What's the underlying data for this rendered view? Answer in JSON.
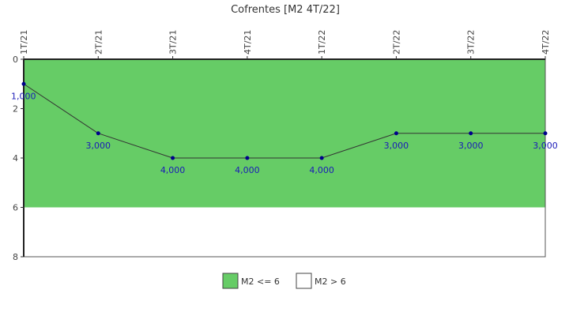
{
  "chart_data": {
    "type": "line",
    "title": "Cofrentes [M2 4T/22]",
    "categories": [
      "1T/21",
      "2T/21",
      "3T/21",
      "4T/21",
      "1T/22",
      "2T/22",
      "3T/22",
      "4T/22"
    ],
    "series": [
      {
        "values": [
          1,
          3,
          4,
          4,
          4,
          3,
          3,
          3
        ],
        "labels": [
          "1,000",
          "3,000",
          "4,000",
          "4,000",
          "4,000",
          "3,000",
          "3,000",
          "3,000"
        ],
        "color": "#00008b"
      }
    ],
    "ylim": [
      0,
      8
    ],
    "y_ticks": [
      "0",
      "2",
      "4",
      "6",
      "8"
    ],
    "y_inverted": true,
    "bands": [
      {
        "name": "M2 <= 6",
        "from": 0,
        "to": 6,
        "color": "#66cc66"
      },
      {
        "name": "M2 > 6",
        "from": 6,
        "to": 8,
        "color": "#ffffff"
      }
    ],
    "legend_placement": "bottom"
  }
}
